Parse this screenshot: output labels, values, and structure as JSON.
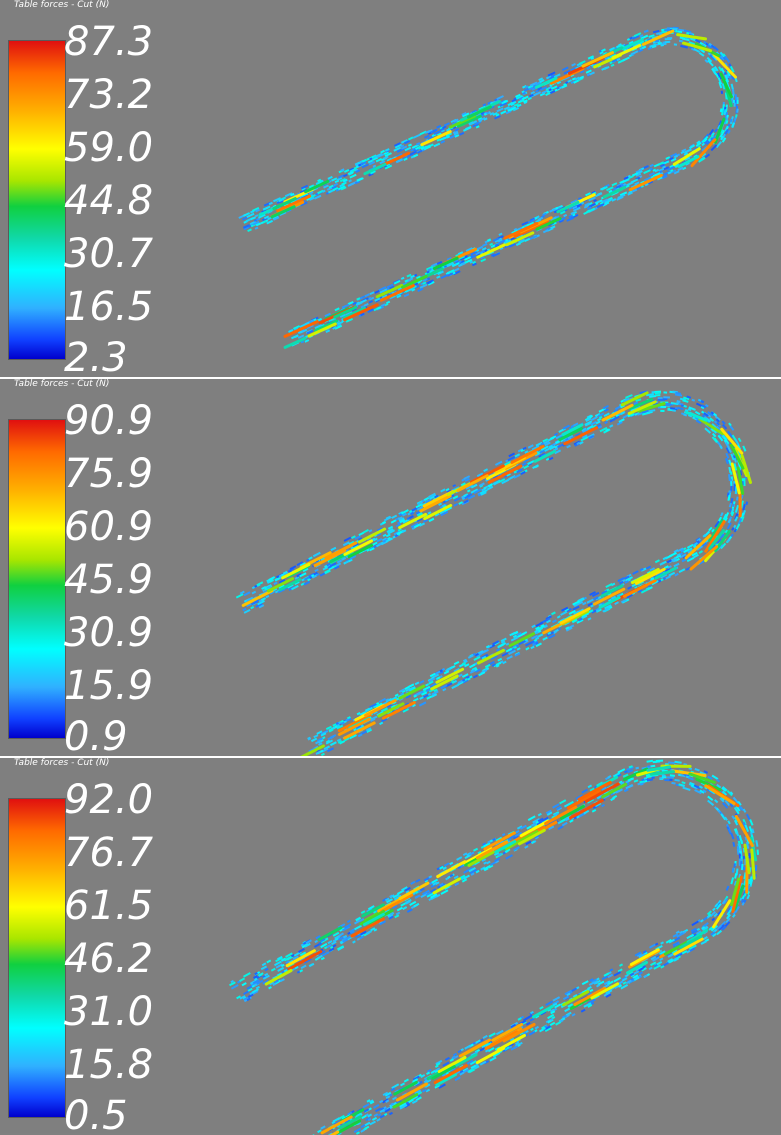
{
  "panels": [
    {
      "title": "Table forces - Cut (N)",
      "ticks": [
        "87.3",
        "73.2",
        "59.0",
        "44.8",
        "30.7",
        "16.5",
        "2.3"
      ]
    },
    {
      "title": "Table forces - Cut (N)",
      "ticks": [
        "90.9",
        "75.9",
        "60.9",
        "45.9",
        "30.9",
        "15.9",
        "0.9"
      ]
    },
    {
      "title": "Table forces - Cut (N)",
      "ticks": [
        "92.0",
        "76.7",
        "61.5",
        "46.2",
        "31.0",
        "15.8",
        "0.5"
      ]
    }
  ],
  "colors": {
    "background": "#7f7f7f",
    "colormap": [
      "#e01010",
      "#ff6a00",
      "#ffb000",
      "#ffff00",
      "#a8e600",
      "#10d040",
      "#10d8a8",
      "#00ffff",
      "#30b0ff",
      "#1040ff",
      "#0000cc"
    ],
    "track_base": "#40b8e8"
  }
}
